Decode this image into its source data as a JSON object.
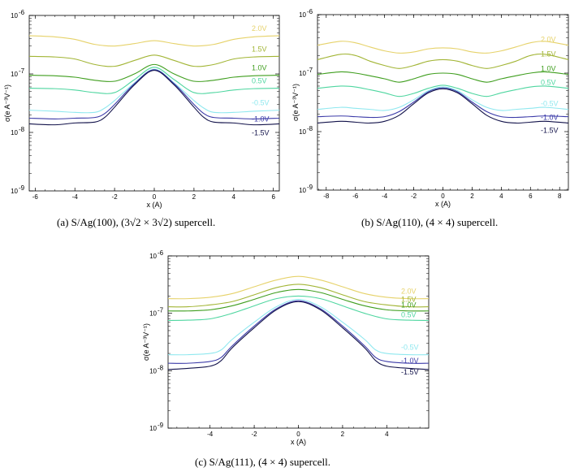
{
  "figure": {
    "captions": [
      "(a) S/Ag(100), (3√2 × 3√2) supercell.",
      "(b) S/Ag(110), (4 × 4) supercell.",
      "(c) S/Ag(111), (4 × 4) supercell."
    ]
  },
  "chart_data": [
    {
      "id": "a",
      "type": "line",
      "yscale": "log",
      "xlabel": "x (A)",
      "ylabel": "σ(e A⁻³V⁻¹)",
      "xlim": [
        -6.3,
        6.3
      ],
      "ylim": [
        1e-09,
        1e-06
      ],
      "xticks": [
        -6,
        -4,
        -2,
        0,
        2,
        4,
        6
      ],
      "yticks": [
        {
          "value": 1e-09,
          "label": "10",
          "exp": "-9"
        },
        {
          "value": 1e-08,
          "label": "10",
          "exp": "-8"
        },
        {
          "value": 1e-07,
          "label": "10",
          "exp": "-7"
        },
        {
          "value": 1e-06,
          "label": "10",
          "exp": "-6"
        }
      ],
      "series": [
        {
          "name": "2.0V",
          "color": "#e6d26a",
          "x": [
            -6.3,
            -5,
            -4,
            -3,
            -2,
            -1,
            0,
            1,
            2,
            3,
            4,
            5,
            6.3
          ],
          "values": [
            4.5e-07,
            4.3e-07,
            3.9e-07,
            3.2e-07,
            3e-07,
            3.3e-07,
            3.7e-07,
            3.3e-07,
            3e-07,
            3.2e-07,
            3.9e-07,
            4.3e-07,
            4.5e-07
          ]
        },
        {
          "name": "1.5V",
          "color": "#a2b535",
          "x": [
            -6.3,
            -5,
            -4,
            -3,
            -2,
            -1,
            0,
            1,
            2,
            3,
            4,
            5,
            6.3
          ],
          "values": [
            2e-07,
            1.95e-07,
            1.8e-07,
            1.45e-07,
            1.35e-07,
            1.7e-07,
            2.1e-07,
            1.7e-07,
            1.35e-07,
            1.45e-07,
            1.8e-07,
            1.95e-07,
            2e-07
          ]
        },
        {
          "name": "1.0V",
          "color": "#3f9e1e",
          "x": [
            -6.3,
            -5,
            -4,
            -3,
            -2,
            -1,
            0,
            1,
            2,
            3,
            4,
            5,
            6.3
          ],
          "values": [
            9.5e-08,
            9.3e-08,
            8.8e-08,
            7.8e-08,
            7.5e-08,
            1e-07,
            1.45e-07,
            1e-07,
            7.5e-08,
            7.8e-08,
            8.8e-08,
            9.3e-08,
            9.5e-08
          ]
        },
        {
          "name": "0.5V",
          "color": "#4fd6a0",
          "x": [
            -6.3,
            -5,
            -4,
            -3,
            -2,
            -1,
            0,
            1,
            2,
            3,
            4,
            5,
            6.3
          ],
          "values": [
            5.7e-08,
            5.6e-08,
            5.3e-08,
            4.8e-08,
            4.8e-08,
            8e-08,
            1.3e-07,
            8e-08,
            4.8e-08,
            4.8e-08,
            5.3e-08,
            5.6e-08,
            5.7e-08
          ]
        },
        {
          "name": "-0.5V",
          "color": "#8fe8ef",
          "x": [
            -6.3,
            -5,
            -4,
            -3,
            -2.5,
            -2,
            -1,
            0,
            1,
            2,
            2.5,
            3,
            4,
            5,
            6.3
          ],
          "values": [
            2.4e-08,
            2.3e-08,
            2.2e-08,
            2.2e-08,
            2.6e-08,
            3.5e-08,
            7e-08,
            1.2e-07,
            7e-08,
            3.5e-08,
            2.6e-08,
            2.2e-08,
            2.2e-08,
            2.3e-08,
            2.4e-08
          ]
        },
        {
          "name": "-1.0V",
          "color": "#3b3aa8",
          "x": [
            -6.3,
            -5,
            -4,
            -3,
            -2.5,
            -2,
            -1,
            0,
            1,
            2,
            2.5,
            3,
            4,
            5,
            6.3
          ],
          "values": [
            1.75e-08,
            1.7e-08,
            1.75e-08,
            1.8e-08,
            2.1e-08,
            3e-08,
            6.8e-08,
            1.18e-07,
            6.8e-08,
            3e-08,
            2.1e-08,
            1.8e-08,
            1.75e-08,
            1.7e-08,
            1.75e-08
          ]
        },
        {
          "name": "-1.5V",
          "color": "#12124a",
          "x": [
            -6.3,
            -5,
            -4,
            -3,
            -2.5,
            -2,
            -1,
            0,
            1,
            2,
            2.5,
            3,
            4,
            5,
            6.3
          ],
          "values": [
            1.4e-08,
            1.35e-08,
            1.45e-08,
            1.5e-08,
            1.8e-08,
            2.7e-08,
            6.5e-08,
            1.15e-07,
            6.5e-08,
            2.7e-08,
            1.8e-08,
            1.5e-08,
            1.45e-08,
            1.35e-08,
            1.4e-08
          ]
        }
      ]
    },
    {
      "id": "b",
      "type": "line",
      "yscale": "log",
      "xlabel": "x (A)",
      "ylabel": "σ(e A⁻³V⁻¹)",
      "xlim": [
        -8.6,
        8.6
      ],
      "ylim": [
        1e-09,
        1e-06
      ],
      "xticks": [
        -8,
        -6,
        -4,
        -2,
        0,
        2,
        4,
        6,
        8
      ],
      "yticks": [
        {
          "value": 1e-09,
          "label": "10",
          "exp": "-9"
        },
        {
          "value": 1e-08,
          "label": "10",
          "exp": "-8"
        },
        {
          "value": 1e-07,
          "label": "10",
          "exp": "-7"
        },
        {
          "value": 1e-06,
          "label": "10",
          "exp": "-6"
        }
      ],
      "series": [
        {
          "name": "2.0V",
          "color": "#e6d26a",
          "x": [
            -8.6,
            -7,
            -6,
            -5,
            -4,
            -3,
            -2,
            -1,
            0,
            1,
            2,
            3,
            4,
            5,
            6,
            7,
            8.6
          ],
          "values": [
            3e-07,
            3.5e-07,
            3.3e-07,
            2.8e-07,
            2.4e-07,
            2.2e-07,
            2.3e-07,
            2.6e-07,
            2.7e-07,
            2.6e-07,
            2.3e-07,
            2.2e-07,
            2.4e-07,
            2.8e-07,
            3.3e-07,
            3.5e-07,
            3e-07
          ]
        },
        {
          "name": "1.5V",
          "color": "#a2b535",
          "x": [
            -8.6,
            -7,
            -6,
            -5,
            -4,
            -3,
            -2,
            -1,
            0,
            1,
            2,
            3,
            4,
            5,
            6,
            7,
            8.6
          ],
          "values": [
            1.7e-07,
            2.1e-07,
            2e-07,
            1.6e-07,
            1.35e-07,
            1.2e-07,
            1.35e-07,
            1.6e-07,
            1.7e-07,
            1.6e-07,
            1.35e-07,
            1.2e-07,
            1.35e-07,
            1.6e-07,
            2e-07,
            2.1e-07,
            1.7e-07
          ]
        },
        {
          "name": "1.0V",
          "color": "#3f9e1e",
          "x": [
            -8.6,
            -7,
            -6,
            -5,
            -4,
            -3,
            -2,
            -1,
            0,
            1,
            2,
            3,
            4,
            5,
            6,
            7,
            8.6
          ],
          "values": [
            9.5e-08,
            1.05e-07,
            1e-07,
            9e-08,
            8e-08,
            7e-08,
            8e-08,
            9.5e-08,
            1e-07,
            9.5e-08,
            8e-08,
            7e-08,
            8e-08,
            9e-08,
            1e-07,
            1.05e-07,
            9.5e-08
          ]
        },
        {
          "name": "0.5V",
          "color": "#4fd6a0",
          "x": [
            -8.6,
            -7,
            -6,
            -5,
            -4,
            -3,
            -2,
            -1,
            0,
            1,
            2,
            3,
            4,
            5,
            6,
            7,
            8.6
          ],
          "values": [
            5.5e-08,
            6e-08,
            5.8e-08,
            5.2e-08,
            4.6e-08,
            4e-08,
            4.5e-08,
            5.5e-08,
            6.2e-08,
            5.5e-08,
            4.5e-08,
            4e-08,
            4.6e-08,
            5.2e-08,
            5.8e-08,
            6e-08,
            5.5e-08
          ]
        },
        {
          "name": "-0.5V",
          "color": "#8fe8ef",
          "x": [
            -8.6,
            -7,
            -6,
            -5,
            -4,
            -3,
            -2,
            -1,
            0,
            1,
            2,
            3,
            4,
            5,
            6,
            7,
            8.6
          ],
          "values": [
            2.4e-08,
            2.6e-08,
            2.5e-08,
            2.4e-08,
            2.3e-08,
            2.6e-08,
            3.5e-08,
            5e-08,
            5.8e-08,
            5e-08,
            3.5e-08,
            2.6e-08,
            2.3e-08,
            2.4e-08,
            2.5e-08,
            2.6e-08,
            2.4e-08
          ]
        },
        {
          "name": "-1.0V",
          "color": "#3b3aa8",
          "x": [
            -8.6,
            -7,
            -6,
            -5,
            -4,
            -3,
            -2,
            -1,
            0,
            1,
            2,
            3,
            4,
            5,
            6,
            7,
            8.6
          ],
          "values": [
            1.8e-08,
            1.85e-08,
            1.8e-08,
            1.75e-08,
            1.8e-08,
            2.2e-08,
            3.2e-08,
            4.8e-08,
            5.6e-08,
            4.8e-08,
            3.2e-08,
            2.2e-08,
            1.8e-08,
            1.75e-08,
            1.8e-08,
            1.85e-08,
            1.8e-08
          ]
        },
        {
          "name": "-1.5V",
          "color": "#12124a",
          "x": [
            -8.6,
            -7,
            -6,
            -5,
            -4,
            -3,
            -2,
            -1,
            0,
            1,
            2,
            3,
            4,
            5,
            6,
            7,
            8.6
          ],
          "values": [
            1.4e-08,
            1.5e-08,
            1.45e-08,
            1.4e-08,
            1.5e-08,
            1.9e-08,
            3e-08,
            4.6e-08,
            5.4e-08,
            4.6e-08,
            3e-08,
            1.9e-08,
            1.5e-08,
            1.4e-08,
            1.45e-08,
            1.5e-08,
            1.4e-08
          ]
        }
      ]
    },
    {
      "id": "c",
      "type": "line",
      "yscale": "log",
      "xlabel": "x (A)",
      "ylabel": "σ(e A⁻³V⁻¹)",
      "xlim": [
        -5.9,
        5.9
      ],
      "ylim": [
        1e-09,
        1e-06
      ],
      "xticks": [
        -4,
        -2,
        0,
        2,
        4
      ],
      "yticks": [
        {
          "value": 1e-09,
          "label": "10",
          "exp": "-9"
        },
        {
          "value": 1e-08,
          "label": "10",
          "exp": "-8"
        },
        {
          "value": 1e-07,
          "label": "10",
          "exp": "-7"
        },
        {
          "value": 1e-06,
          "label": "10",
          "exp": "-6"
        }
      ],
      "series": [
        {
          "name": "2.0V",
          "color": "#e6d26a",
          "x": [
            -5.9,
            -5,
            -4,
            -3,
            -2,
            -1,
            0,
            1,
            2,
            3,
            4,
            5,
            5.9
          ],
          "values": [
            1.8e-07,
            1.8e-07,
            1.9e-07,
            2.2e-07,
            2.9e-07,
            3.8e-07,
            4.4e-07,
            3.8e-07,
            2.9e-07,
            2.2e-07,
            1.9e-07,
            1.8e-07,
            1.8e-07
          ]
        },
        {
          "name": "1.5V",
          "color": "#a2b535",
          "x": [
            -5.9,
            -5,
            -4,
            -3,
            -2,
            -1,
            0,
            1,
            2,
            3,
            4,
            5,
            5.9
          ],
          "values": [
            1.3e-07,
            1.3e-07,
            1.4e-07,
            1.6e-07,
            2.1e-07,
            2.8e-07,
            3.2e-07,
            2.8e-07,
            2.1e-07,
            1.6e-07,
            1.4e-07,
            1.3e-07,
            1.3e-07
          ]
        },
        {
          "name": "1.0V",
          "color": "#3f9e1e",
          "x": [
            -5.9,
            -5,
            -4,
            -3,
            -2,
            -1,
            0,
            1,
            2,
            3,
            4,
            5,
            5.9
          ],
          "values": [
            1.1e-07,
            1.1e-07,
            1.15e-07,
            1.35e-07,
            1.75e-07,
            2.3e-07,
            2.6e-07,
            2.3e-07,
            1.75e-07,
            1.35e-07,
            1.15e-07,
            1.1e-07,
            1.1e-07
          ]
        },
        {
          "name": "0.5V",
          "color": "#4fd6a0",
          "x": [
            -5.9,
            -5,
            -4,
            -3,
            -2,
            -1,
            0,
            1,
            2,
            3,
            4,
            5,
            5.9
          ],
          "values": [
            7.5e-08,
            7.6e-08,
            8e-08,
            1e-07,
            1.35e-07,
            1.8e-07,
            2e-07,
            1.8e-07,
            1.35e-07,
            1e-07,
            8e-08,
            7.6e-08,
            7.5e-08
          ]
        },
        {
          "name": "-0.5V",
          "color": "#8fe8ef",
          "x": [
            -5.9,
            -5,
            -4,
            -3.5,
            -3,
            -2,
            -1,
            0,
            1,
            2,
            3,
            3.5,
            4,
            5,
            5.9
          ],
          "values": [
            1.9e-08,
            1.9e-08,
            2e-08,
            2.3e-08,
            3.5e-08,
            7e-08,
            1.3e-07,
            1.75e-07,
            1.3e-07,
            7e-08,
            3.5e-08,
            2.3e-08,
            2e-08,
            1.9e-08,
            1.9e-08
          ]
        },
        {
          "name": "-1.0V",
          "color": "#3b3aa8",
          "x": [
            -5.9,
            -5,
            -4,
            -3.5,
            -3,
            -2,
            -1,
            0,
            1,
            2,
            3,
            3.5,
            4,
            5,
            5.9
          ],
          "values": [
            1.35e-08,
            1.35e-08,
            1.45e-08,
            1.7e-08,
            2.7e-08,
            6e-08,
            1.2e-07,
            1.65e-07,
            1.2e-07,
            6e-08,
            2.7e-08,
            1.7e-08,
            1.45e-08,
            1.35e-08,
            1.35e-08
          ]
        },
        {
          "name": "-1.5V",
          "color": "#12124a",
          "x": [
            -5.9,
            -5,
            -4,
            -3.5,
            -3,
            -2,
            -1,
            0,
            1,
            2,
            3,
            3.5,
            4,
            5,
            5.9
          ],
          "values": [
            1.05e-08,
            1.1e-08,
            1.2e-08,
            1.5e-08,
            2.5e-08,
            5.6e-08,
            1.15e-07,
            1.6e-07,
            1.15e-07,
            5.6e-08,
            2.5e-08,
            1.5e-08,
            1.2e-08,
            1.1e-08,
            1.05e-08
          ]
        }
      ]
    }
  ]
}
